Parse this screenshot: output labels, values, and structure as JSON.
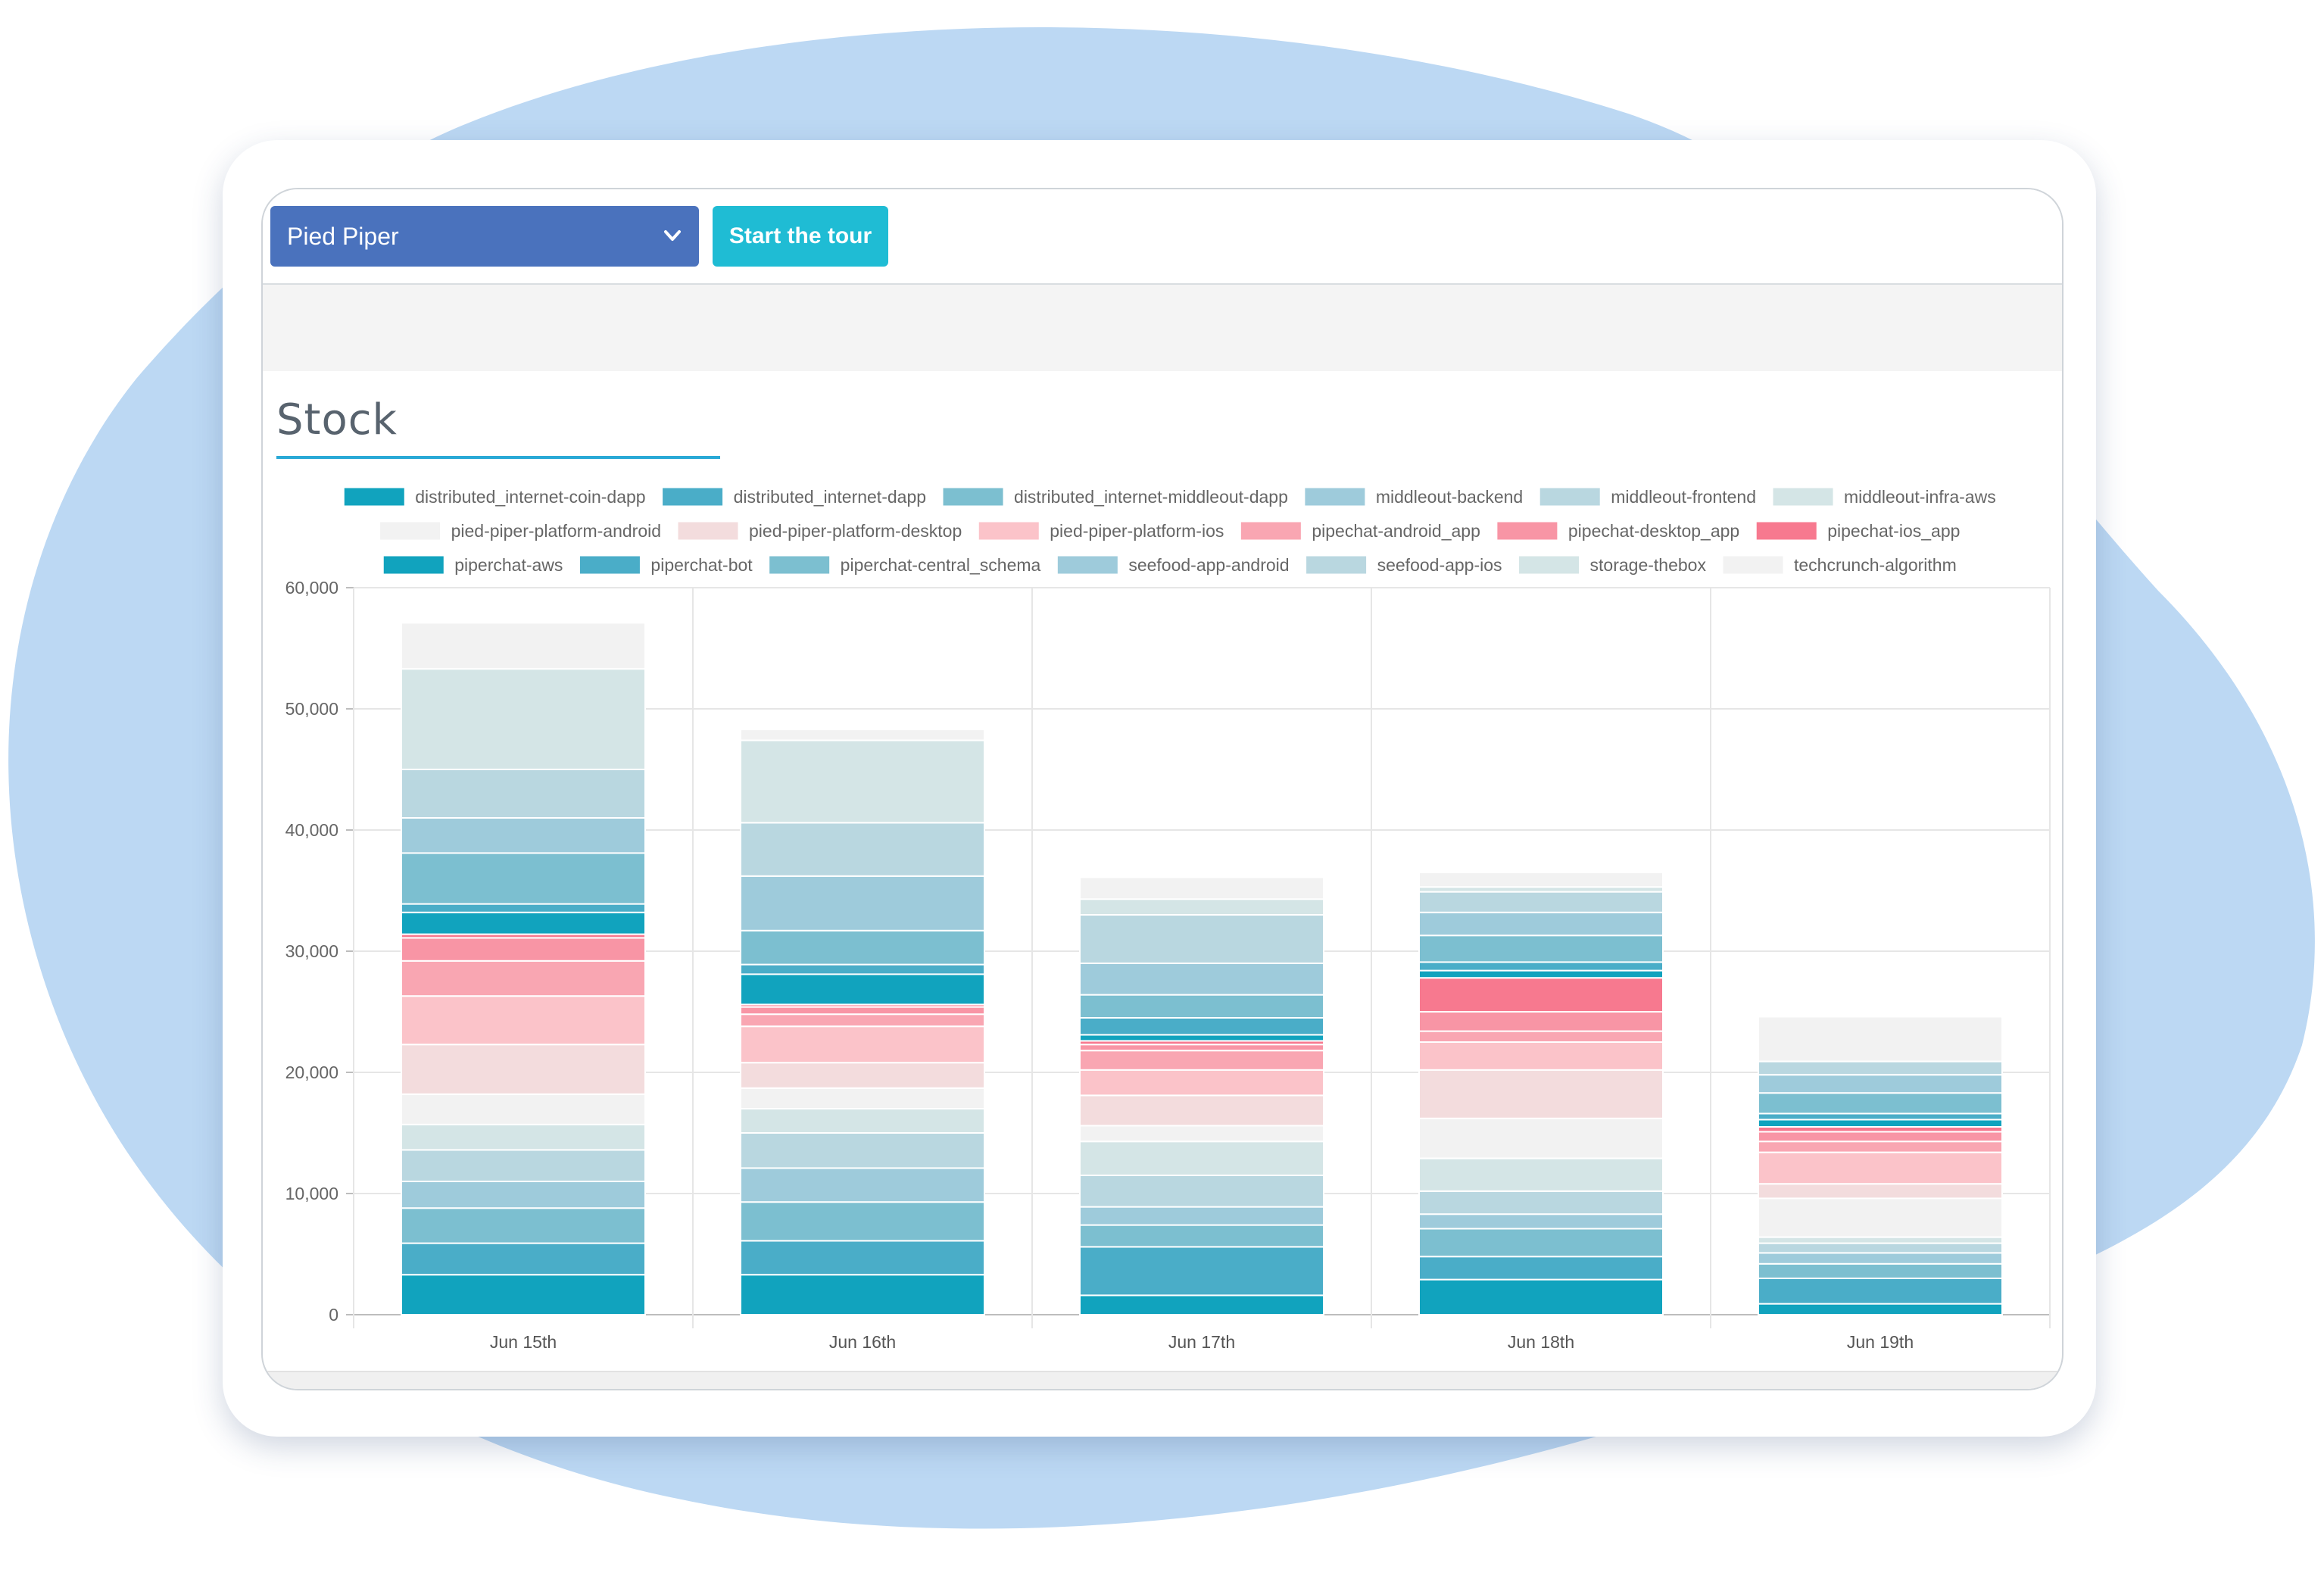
{
  "toolbar": {
    "company_select": "Pied Piper",
    "tour_button": "Start the tour"
  },
  "section": {
    "title": "Stock"
  },
  "colors": {
    "background_blob": "#bcd8f3",
    "select": "#4a72bd",
    "tour_button": "#1fbcd4",
    "title_underline": "#2aa9d6"
  },
  "chart_data": {
    "type": "bar",
    "stacked": true,
    "categories": [
      "Jun 15th",
      "Jun 16th",
      "Jun 17th",
      "Jun 18th",
      "Jun 19th"
    ],
    "ylim": [
      0,
      60000
    ],
    "yticks": [
      0,
      10000,
      20000,
      30000,
      40000,
      50000,
      60000
    ],
    "ytick_labels": [
      "0",
      "10,000",
      "20,000",
      "30,000",
      "40,000",
      "50,000",
      "60,000"
    ],
    "grid": true,
    "legend_position": "top",
    "series": [
      {
        "name": "distributed_internet-coin-dapp",
        "color": "#11a3be",
        "values": [
          3300,
          3300,
          1600,
          2900,
          900
        ]
      },
      {
        "name": "distributed_internet-dapp",
        "color": "#4aadc8",
        "values": [
          2600,
          2800,
          4000,
          1900,
          2100
        ]
      },
      {
        "name": "distributed_internet-middleout-dapp",
        "color": "#7cbfd0",
        "values": [
          2900,
          3200,
          1800,
          2300,
          1200
        ]
      },
      {
        "name": "middleout-backend",
        "color": "#9ecbdb",
        "values": [
          2200,
          2800,
          1500,
          1200,
          900
        ]
      },
      {
        "name": "middleout-frontend",
        "color": "#b9d7e0",
        "values": [
          2600,
          2900,
          2600,
          1900,
          800
        ]
      },
      {
        "name": "middleout-infra-aws",
        "color": "#d4e5e6",
        "values": [
          2100,
          2000,
          2800,
          2700,
          500
        ]
      },
      {
        "name": "pied-piper-platform-android",
        "color": "#f2f2f2",
        "values": [
          2500,
          1700,
          1300,
          3300,
          3200
        ]
      },
      {
        "name": "pied-piper-platform-desktop",
        "color": "#f3dcdd",
        "values": [
          4100,
          2100,
          2500,
          4000,
          1200
        ]
      },
      {
        "name": "pied-piper-platform-ios",
        "color": "#fbc3c9",
        "values": [
          4000,
          3000,
          2100,
          2300,
          2600
        ]
      },
      {
        "name": "pipechat-android_app",
        "color": "#f9a6b2",
        "values": [
          2900,
          1000,
          1600,
          900,
          900
        ]
      },
      {
        "name": "pipechat-desktop_app",
        "color": "#f895a5",
        "values": [
          1900,
          600,
          500,
          1600,
          800
        ]
      },
      {
        "name": "pipechat-ios_app",
        "color": "#f7798f",
        "values": [
          300,
          200,
          300,
          2800,
          400
        ]
      },
      {
        "name": "piperchat-aws",
        "color": "#11a3be",
        "values": [
          1800,
          2500,
          500,
          600,
          600
        ]
      },
      {
        "name": "piperchat-bot",
        "color": "#4aadc8",
        "values": [
          700,
          800,
          1400,
          700,
          500
        ]
      },
      {
        "name": "piperchat-central_schema",
        "color": "#7cbfd0",
        "values": [
          4200,
          2800,
          1900,
          2200,
          1700
        ]
      },
      {
        "name": "seefood-app-android",
        "color": "#9ecbdb",
        "values": [
          2900,
          4500,
          2600,
          1900,
          1500
        ]
      },
      {
        "name": "seefood-app-ios",
        "color": "#b9d7e0",
        "values": [
          4000,
          4400,
          4000,
          1700,
          1100
        ]
      },
      {
        "name": "storage-thebox",
        "color": "#d4e5e6",
        "values": [
          8300,
          6800,
          1300,
          400,
          0
        ]
      },
      {
        "name": "techcrunch-algorithm",
        "color": "#f2f2f2",
        "values": [
          3800,
          900,
          1800,
          1200,
          3700
        ]
      }
    ]
  }
}
